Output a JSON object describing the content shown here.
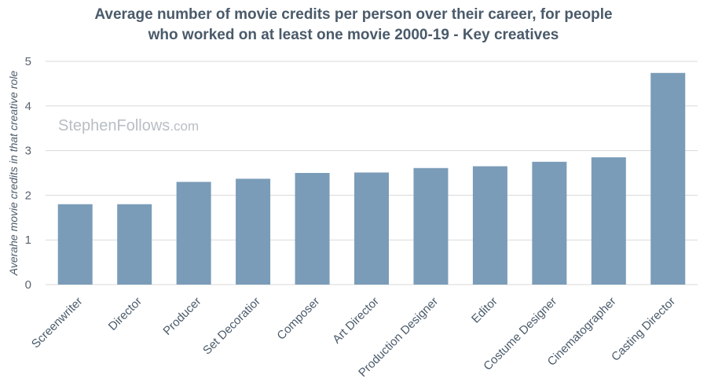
{
  "chart_data": {
    "type": "bar",
    "title_lines": [
      "Average number of movie credits per person over their career, for people",
      "who worked on at least one movie 2000-19 - Key creatives"
    ],
    "ylabel": "Averahe movie credits in that creative role",
    "xlabel": "",
    "ylim": [
      0,
      5
    ],
    "yticks": [
      "0",
      "1",
      "2",
      "3",
      "4",
      "5"
    ],
    "categories": [
      "Screenwriter",
      "Director",
      "Producer",
      "Set Decoratior",
      "Composer",
      "Art Director",
      "Production Designer",
      "Editor",
      "Costume Designer",
      "Cinematographer",
      "Casting Director"
    ],
    "values": [
      1.8,
      1.8,
      2.3,
      2.37,
      2.5,
      2.51,
      2.61,
      2.65,
      2.75,
      2.85,
      4.74
    ],
    "grid": true,
    "legend": "none",
    "bar_color": "#7a9cb8",
    "watermark": {
      "main": "StephenFollows",
      "suffix": ".com"
    }
  }
}
